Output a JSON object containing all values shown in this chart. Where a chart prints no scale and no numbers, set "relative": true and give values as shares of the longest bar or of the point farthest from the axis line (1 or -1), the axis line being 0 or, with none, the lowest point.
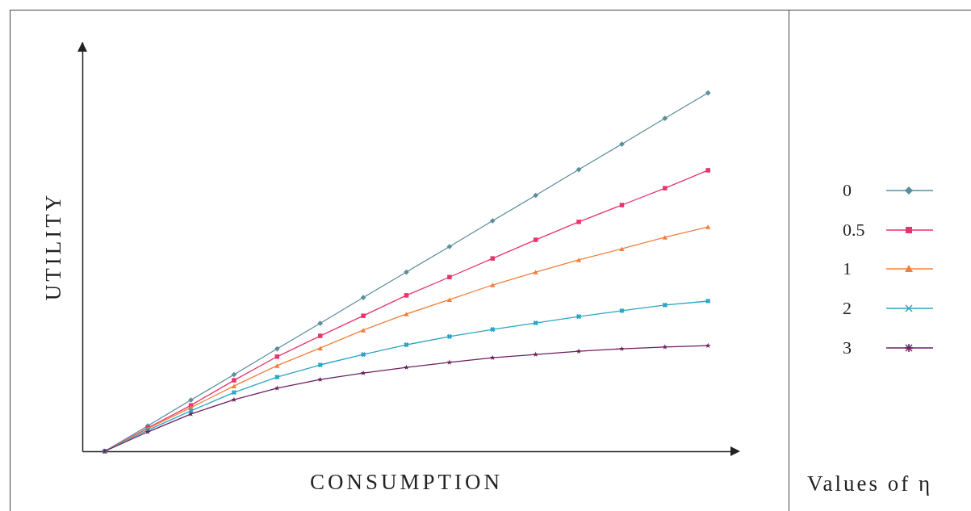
{
  "chart_data": {
    "type": "line",
    "relative": true,
    "xlabel": "CONSUMPTION",
    "ylabel": "UTILITY",
    "legend_title": "Values of η",
    "legend": "right",
    "categories": [
      null,
      null,
      null,
      null,
      null,
      null,
      null,
      null,
      null,
      null,
      null,
      null,
      null,
      null,
      null
    ],
    "series": [
      {
        "name": "0",
        "color": "#5b8e9c",
        "marker": "diamond",
        "values": [
          0,
          0.071,
          0.143,
          0.214,
          0.286,
          0.357,
          0.429,
          0.5,
          0.571,
          0.643,
          0.714,
          0.786,
          0.857,
          0.929,
          1
        ]
      },
      {
        "name": "0.5",
        "color": "#e8336b",
        "marker": "square",
        "values": [
          0,
          0.065,
          0.128,
          0.198,
          0.264,
          0.322,
          0.378,
          0.435,
          0.486,
          0.538,
          0.59,
          0.64,
          0.687,
          0.734,
          0.784
        ]
      },
      {
        "name": "1",
        "color": "#f07f3c",
        "marker": "triangle",
        "values": [
          0,
          0.063,
          0.122,
          0.182,
          0.239,
          0.288,
          0.338,
          0.383,
          0.423,
          0.464,
          0.5,
          0.534,
          0.565,
          0.597,
          0.626
        ]
      },
      {
        "name": "2",
        "color": "#2aa5c4",
        "marker": "cross",
        "values": [
          0,
          0.059,
          0.113,
          0.164,
          0.207,
          0.241,
          0.27,
          0.297,
          0.32,
          0.34,
          0.358,
          0.376,
          0.392,
          0.408,
          0.419
        ]
      },
      {
        "name": "3",
        "color": "#6b1f5e",
        "marker": "star",
        "values": [
          0,
          0.054,
          0.104,
          0.144,
          0.176,
          0.2,
          0.218,
          0.234,
          0.248,
          0.261,
          0.27,
          0.279,
          0.286,
          0.291,
          0.295
        ]
      }
    ]
  }
}
